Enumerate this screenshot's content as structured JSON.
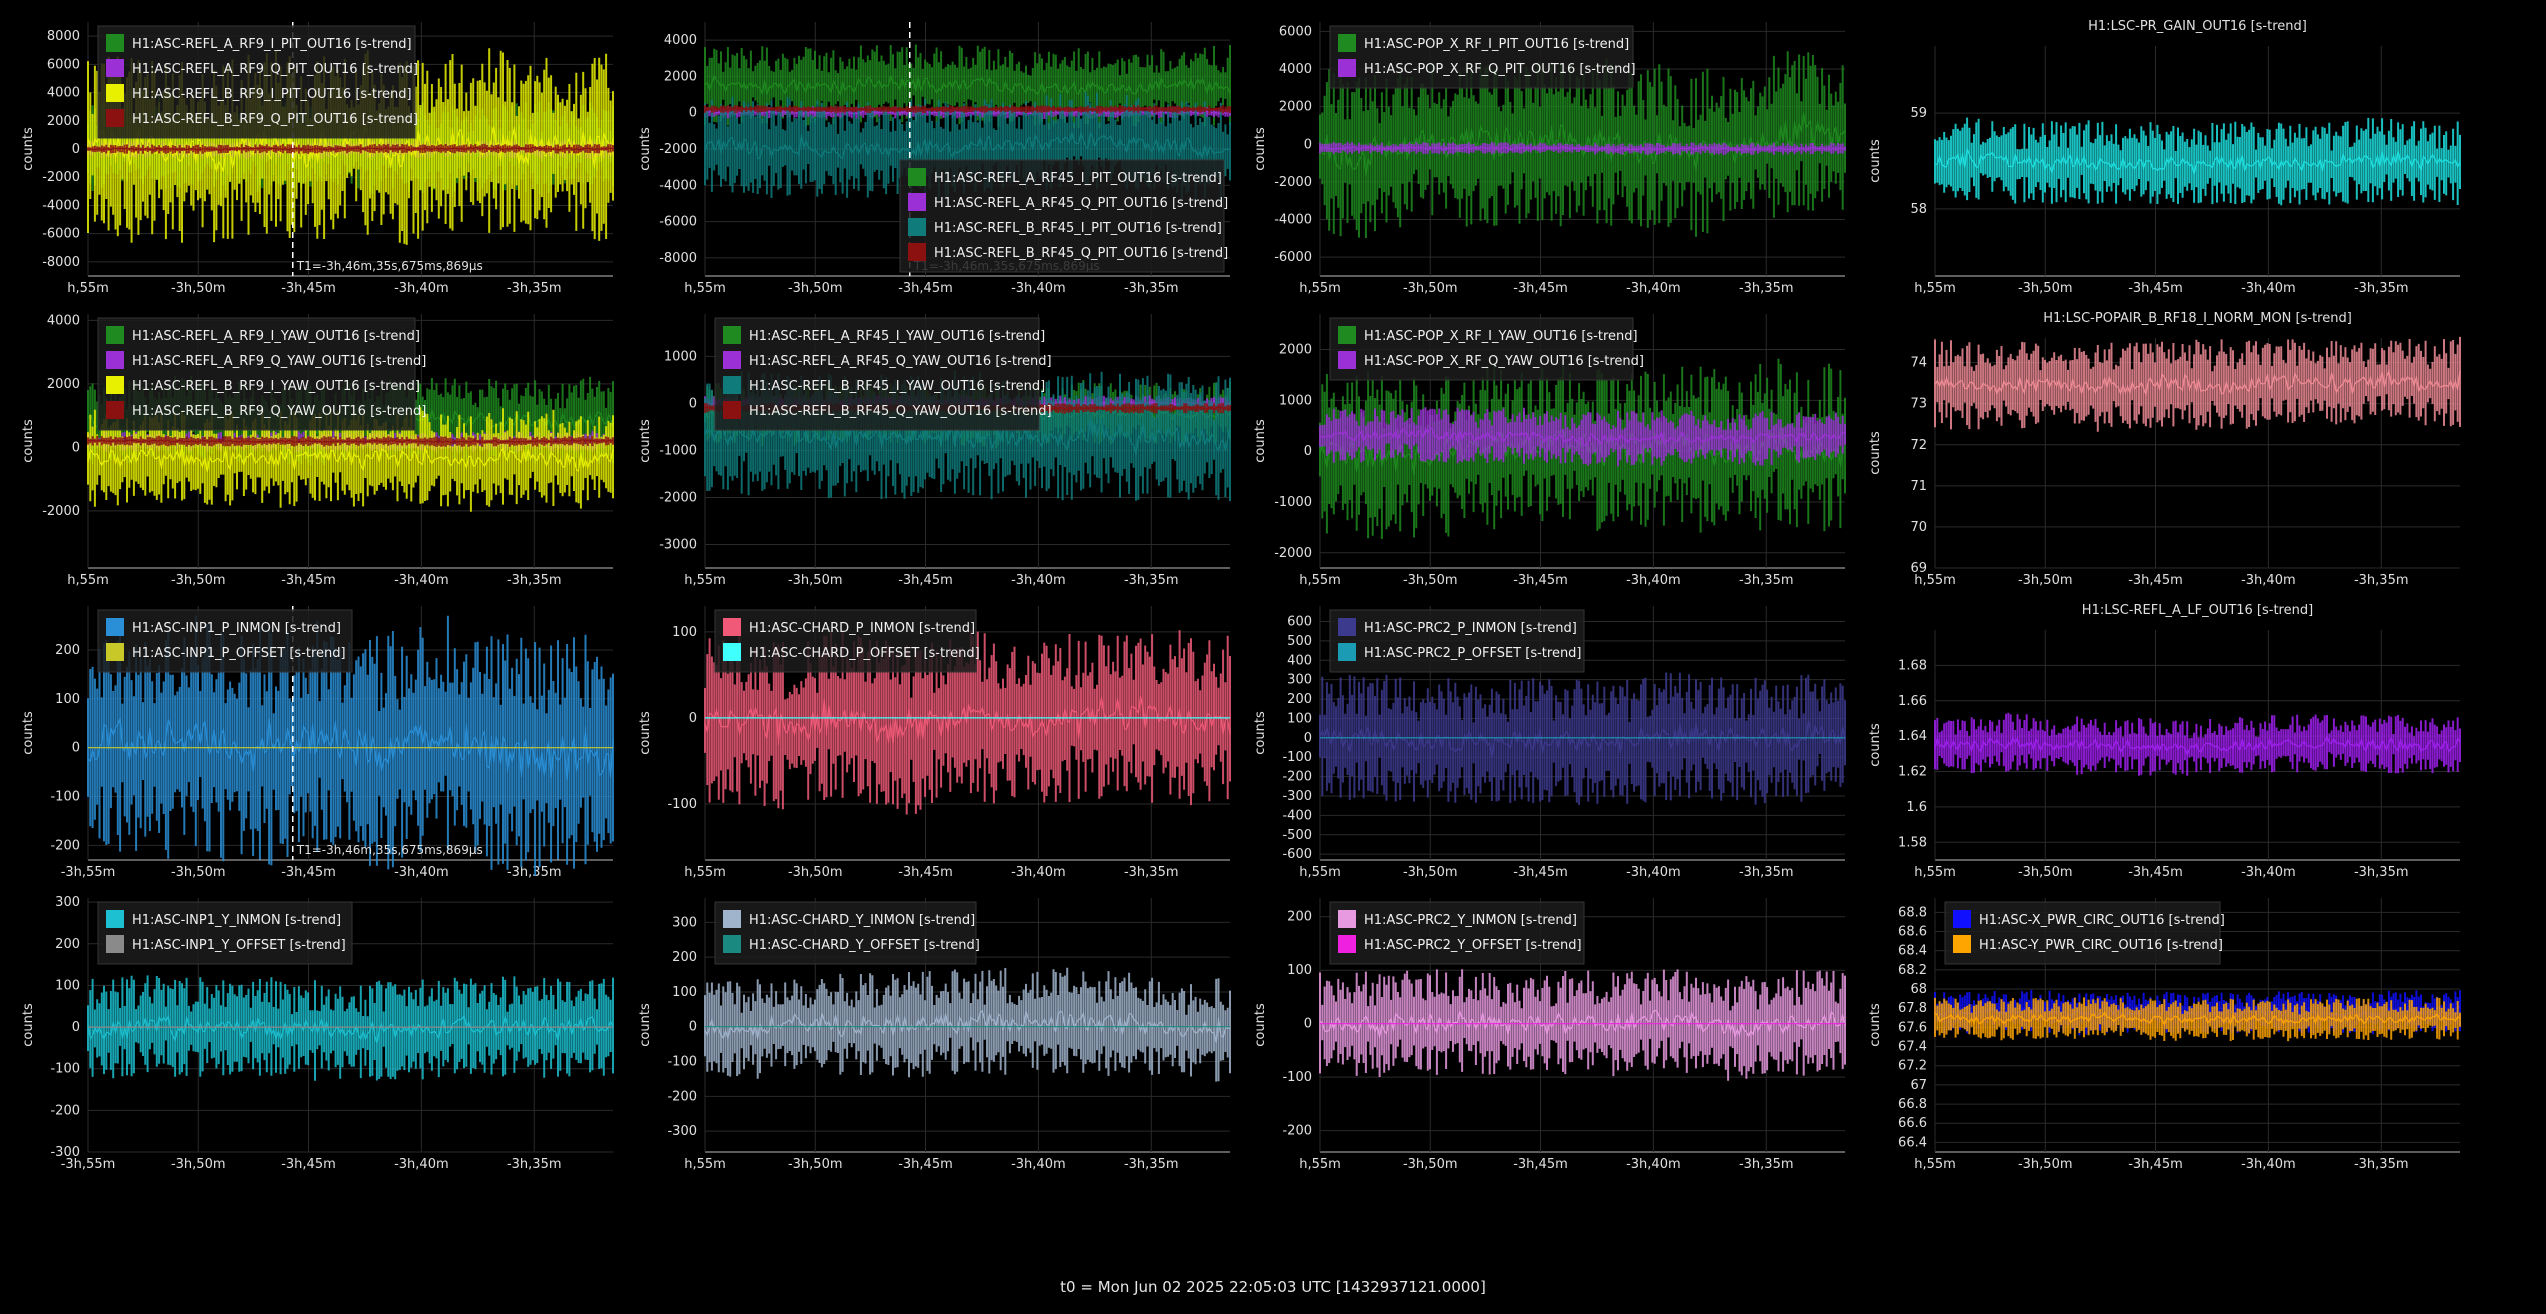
{
  "footer": "t0 = Mon Jun 02 2025 22:05:03 UTC [1432937121.0000]",
  "chart_data": [
    {
      "type": "line",
      "title": "",
      "ylabel": "counts",
      "x_ticks": [
        "h,55m",
        "-3h,50m",
        "-3h,45m",
        "-3h,40m",
        "-3h,35m"
      ],
      "y_ticks": [
        "8000",
        "6000",
        "4000",
        "2000",
        "0",
        "-2000",
        "-4000",
        "-6000",
        "-8000"
      ],
      "ylim": [
        -9000,
        9000
      ],
      "cursor": {
        "x": "-3h,46m,35s,675ms,869µs",
        "label": "T1=-3h,46m,35s,675ms,869µs"
      },
      "legend": "top-left",
      "series": [
        {
          "name": "H1:ASC-REFL_A_RF9_I_PIT_OUT16 [s-trend]",
          "color": "#1f8a1f",
          "center": 0,
          "amplitude": 3000
        },
        {
          "name": "H1:ASC-REFL_A_RF9_Q_PIT_OUT16 [s-trend]",
          "color": "#9b30d6",
          "center": 0,
          "amplitude": 600
        },
        {
          "name": "H1:ASC-REFL_B_RF9_I_PIT_OUT16 [s-trend]",
          "color": "#e8f000",
          "center": 0,
          "amplitude": 6000
        },
        {
          "name": "H1:ASC-REFL_B_RF9_Q_PIT_OUT16 [s-trend]",
          "color": "#8b1010",
          "center": 0,
          "amplitude": 300
        }
      ]
    },
    {
      "type": "line",
      "title": "",
      "ylabel": "counts",
      "x_ticks": [
        "h,55m",
        "-3h,50m",
        "-3h,45m",
        "-3h,40m",
        "-3h,35m"
      ],
      "y_ticks": [
        "4000",
        "2000",
        "0",
        "-2000",
        "-4000",
        "-6000",
        "-8000"
      ],
      "ylim": [
        -9000,
        5000
      ],
      "cursor": {
        "x": "-3h,46m,35s,675ms,869µs",
        "label": "T1=-3h,46m,35s,675ms,869µs"
      },
      "legend": "bottom-right",
      "series": [
        {
          "name": "H1:ASC-REFL_A_RF45_I_PIT_OUT16 [s-trend]",
          "color": "#1f8a1f",
          "center": 1500,
          "amplitude": 2000
        },
        {
          "name": "H1:ASC-REFL_A_RF45_Q_PIT_OUT16 [s-trend]",
          "color": "#9b30d6",
          "center": 0,
          "amplitude": 300
        },
        {
          "name": "H1:ASC-REFL_B_RF45_I_PIT_OUT16 [s-trend]",
          "color": "#0f7b7b",
          "center": -1800,
          "amplitude": 2500
        },
        {
          "name": "H1:ASC-REFL_B_RF45_Q_PIT_OUT16 [s-trend]",
          "color": "#8b1010",
          "center": 200,
          "amplitude": 200
        }
      ]
    },
    {
      "type": "line",
      "title": "",
      "ylabel": "counts",
      "x_ticks": [
        "h,55m",
        "-3h,50m",
        "-3h,45m",
        "-3h,40m",
        "-3h,35m"
      ],
      "y_ticks": [
        "6000",
        "4000",
        "2000",
        "0",
        "-2000",
        "-4000",
        "-6000"
      ],
      "ylim": [
        -7000,
        6500
      ],
      "legend": "top-left",
      "series": [
        {
          "name": "H1:ASC-POP_X_RF_I_PIT_OUT16 [s-trend]",
          "color": "#1f8a1f",
          "center": 0,
          "amplitude": 4000
        },
        {
          "name": "H1:ASC-POP_X_RF_Q_PIT_OUT16 [s-trend]",
          "color": "#9b30d6",
          "center": -200,
          "amplitude": 300
        }
      ]
    },
    {
      "type": "line",
      "title": "H1:LSC-PR_GAIN_OUT16 [s-trend]",
      "ylabel": "counts",
      "x_ticks": [
        "h,55m",
        "-3h,50m",
        "-3h,45m",
        "-3h,40m",
        "-3h,35m"
      ],
      "y_ticks": [
        "59",
        "58"
      ],
      "ylim": [
        57.3,
        59.7
      ],
      "legend": "none",
      "series": [
        {
          "name": "H1:LSC-PR_GAIN_OUT16 [s-trend]",
          "color": "#1fe0e0",
          "center": 58.5,
          "amplitude": 0.4
        }
      ]
    },
    {
      "type": "line",
      "title": "",
      "ylabel": "counts",
      "x_ticks": [
        "h,55m",
        "-3h,50m",
        "-3h,45m",
        "-3h,40m",
        "-3h,35m"
      ],
      "y_ticks": [
        "4000",
        "2000",
        "0",
        "-2000"
      ],
      "ylim": [
        -3800,
        4200
      ],
      "legend": "top-left",
      "series": [
        {
          "name": "H1:ASC-REFL_A_RF9_I_YAW_OUT16 [s-trend]",
          "color": "#1f8a1f",
          "center": 800,
          "amplitude": 1200
        },
        {
          "name": "H1:ASC-REFL_A_RF9_Q_YAW_OUT16 [s-trend]",
          "color": "#9b30d6",
          "center": 200,
          "amplitude": 300
        },
        {
          "name": "H1:ASC-REFL_B_RF9_I_YAW_OUT16 [s-trend]",
          "color": "#e8f000",
          "center": -300,
          "amplitude": 1400
        },
        {
          "name": "H1:ASC-REFL_B_RF9_Q_YAW_OUT16 [s-trend]",
          "color": "#8b1010",
          "center": 200,
          "amplitude": 150
        }
      ]
    },
    {
      "type": "line",
      "title": "",
      "ylabel": "counts",
      "x_ticks": [
        "h,55m",
        "-3h,50m",
        "-3h,45m",
        "-3h,40m",
        "-3h,35m"
      ],
      "y_ticks": [
        "1000",
        "0",
        "-1000",
        "-2000",
        "-3000"
      ],
      "ylim": [
        -3500,
        1900
      ],
      "legend": "top-left",
      "series": [
        {
          "name": "H1:ASC-REFL_A_RF45_I_YAW_OUT16 [s-trend]",
          "color": "#1f8a1f",
          "center": -200,
          "amplitude": 600
        },
        {
          "name": "H1:ASC-REFL_A_RF45_Q_YAW_OUT16 [s-trend]",
          "color": "#9b30d6",
          "center": 0,
          "amplitude": 150
        },
        {
          "name": "H1:ASC-REFL_B_RF45_I_YAW_OUT16 [s-trend]",
          "color": "#0f7b7b",
          "center": -700,
          "amplitude": 1200
        },
        {
          "name": "H1:ASC-REFL_B_RF45_Q_YAW_OUT16 [s-trend]",
          "color": "#8b1010",
          "center": -100,
          "amplitude": 100
        }
      ]
    },
    {
      "type": "line",
      "title": "",
      "ylabel": "counts",
      "x_ticks": [
        "h,55m",
        "-3h,50m",
        "-3h,45m",
        "-3h,40m",
        "-3h,35m"
      ],
      "y_ticks": [
        "2000",
        "1000",
        "0",
        "-1000",
        "-2000"
      ],
      "ylim": [
        -2300,
        2700
      ],
      "legend": "top-left",
      "series": [
        {
          "name": "H1:ASC-POP_X_RF_I_YAW_OUT16 [s-trend]",
          "color": "#1f8a1f",
          "center": 0,
          "amplitude": 1500
        },
        {
          "name": "H1:ASC-POP_X_RF_Q_YAW_OUT16 [s-trend]",
          "color": "#9b30d6",
          "center": 300,
          "amplitude": 500
        }
      ]
    },
    {
      "type": "line",
      "title": "H1:LSC-POPAIR_B_RF18_I_NORM_MON [s-trend]",
      "ylabel": "counts",
      "x_ticks": [
        "h,55m",
        "-3h,50m",
        "-3h,45m",
        "-3h,40m",
        "-3h,35m"
      ],
      "y_ticks": [
        "74",
        "73",
        "72",
        "71",
        "70",
        "69"
      ],
      "ylim": [
        69,
        74.6
      ],
      "legend": "none",
      "series": [
        {
          "name": "H1:LSC-POPAIR_B_RF18_I_NORM_MON [s-trend]",
          "color": "#f08c96",
          "center": 73.5,
          "amplitude": 1.0
        }
      ]
    },
    {
      "type": "line",
      "title": "",
      "ylabel": "counts",
      "x_ticks": [
        "-3h,55m",
        "-3h,50m",
        "-3h,45m",
        "-3h,40m",
        "-3h,35m"
      ],
      "y_ticks": [
        "200",
        "100",
        "0",
        "-100",
        "-200"
      ],
      "ylim": [
        -230,
        290
      ],
      "cursor": {
        "x": "-3h,46m,35s,675ms,869µs",
        "label": "T1=-3h,46m,35s,675ms,869µs"
      },
      "legend": "top-left",
      "series": [
        {
          "name": "H1:ASC-INP1_P_INMON [s-trend]",
          "color": "#2a8fd6",
          "center": 0,
          "amplitude": 220
        },
        {
          "name": "H1:ASC-INP1_P_OFFSET [s-trend]",
          "color": "#c8c828",
          "center": 0,
          "amplitude": 0
        }
      ]
    },
    {
      "type": "line",
      "title": "",
      "ylabel": "counts",
      "x_ticks": [
        "h,55m",
        "-3h,50m",
        "-3h,45m",
        "-3h,40m",
        "-3h,35m"
      ],
      "y_ticks": [
        "100",
        "0",
        "-100"
      ],
      "ylim": [
        -165,
        130
      ],
      "legend": "top-left",
      "series": [
        {
          "name": "H1:ASC-CHARD_P_INMON [s-trend]",
          "color": "#f05a78",
          "center": 0,
          "amplitude": 90
        },
        {
          "name": "H1:ASC-CHARD_P_OFFSET [s-trend]",
          "color": "#40ffff",
          "center": 0,
          "amplitude": 0
        }
      ]
    },
    {
      "type": "line",
      "title": "",
      "ylabel": "counts",
      "x_ticks": [
        "h,55m",
        "-3h,50m",
        "-3h,45m",
        "-3h,40m",
        "-3h,35m"
      ],
      "y_ticks": [
        "600",
        "500",
        "400",
        "300",
        "200",
        "100",
        "0",
        "-100",
        "-200",
        "-300",
        "-400",
        "-500",
        "-600"
      ],
      "ylim": [
        -630,
        680
      ],
      "legend": "top-left",
      "series": [
        {
          "name": "H1:ASC-PRC2_P_INMON [s-trend]",
          "color": "#3c3a8c",
          "center": 0,
          "amplitude": 300
        },
        {
          "name": "H1:ASC-PRC2_P_OFFSET [s-trend]",
          "color": "#1b9bb4",
          "center": 0,
          "amplitude": 0
        }
      ]
    },
    {
      "type": "line",
      "title": "H1:LSC-REFL_A_LF_OUT16 [s-trend]",
      "ylabel": "counts",
      "x_ticks": [
        "h,55m",
        "-3h,50m",
        "-3h,45m",
        "-3h,40m",
        "-3h,35m"
      ],
      "y_ticks": [
        "1.68",
        "1.66",
        "1.64",
        "1.62",
        "1.6",
        "1.58"
      ],
      "ylim": [
        1.57,
        1.7
      ],
      "legend": "none",
      "series": [
        {
          "name": "H1:LSC-REFL_A_LF_OUT16 [s-trend]",
          "color": "#a020f0",
          "center": 1.635,
          "amplitude": 0.015
        }
      ]
    },
    {
      "type": "line",
      "title": "",
      "ylabel": "counts",
      "x_ticks": [
        "-3h,55m",
        "-3h,50m",
        "-3h,45m",
        "-3h,40m",
        "-3h,35m"
      ],
      "y_ticks": [
        "300",
        "200",
        "100",
        "0",
        "-100",
        "-200",
        "-300"
      ],
      "ylim": [
        -300,
        310
      ],
      "legend": "top-left",
      "series": [
        {
          "name": "H1:ASC-INP1_Y_INMON [s-trend]",
          "color": "#1cc0d0",
          "center": 0,
          "amplitude": 110
        },
        {
          "name": "H1:ASC-INP1_Y_OFFSET [s-trend]",
          "color": "#8a8a8a",
          "center": 0,
          "amplitude": 0
        }
      ]
    },
    {
      "type": "line",
      "title": "",
      "ylabel": "counts",
      "x_ticks": [
        "h,55m",
        "-3h,50m",
        "-3h,45m",
        "-3h,40m",
        "-3h,35m"
      ],
      "y_ticks": [
        "300",
        "200",
        "100",
        "0",
        "-100",
        "-200",
        "-300"
      ],
      "ylim": [
        -360,
        370
      ],
      "legend": "top-left",
      "series": [
        {
          "name": "H1:ASC-CHARD_Y_INMON [s-trend]",
          "color": "#a0b4cc",
          "center": 0,
          "amplitude": 140
        },
        {
          "name": "H1:ASC-CHARD_Y_OFFSET [s-trend]",
          "color": "#1a8a80",
          "center": 0,
          "amplitude": 0
        }
      ]
    },
    {
      "type": "line",
      "title": "",
      "ylabel": "counts",
      "x_ticks": [
        "h,55m",
        "-3h,50m",
        "-3h,45m",
        "-3h,40m",
        "-3h,35m"
      ],
      "y_ticks": [
        "200",
        "100",
        "0",
        "-100",
        "-200"
      ],
      "ylim": [
        -240,
        235
      ],
      "legend": "top-left",
      "series": [
        {
          "name": "H1:ASC-PRC2_Y_INMON [s-trend]",
          "color": "#e89ae0",
          "center": 0,
          "amplitude": 90
        },
        {
          "name": "H1:ASC-PRC2_Y_OFFSET [s-trend]",
          "color": "#f020e0",
          "center": 0,
          "amplitude": 0
        }
      ]
    },
    {
      "type": "line",
      "title": "",
      "ylabel": "counts",
      "x_ticks": [
        "h,55m",
        "-3h,50m",
        "-3h,45m",
        "-3h,40m",
        "-3h,35m"
      ],
      "y_ticks": [
        "68.8",
        "68.6",
        "68.4",
        "68.2",
        "68",
        "67.8",
        "67.6",
        "67.4",
        "67.2",
        "67",
        "66.8",
        "66.6",
        "66.4"
      ],
      "ylim": [
        66.3,
        68.95
      ],
      "legend": "top-left",
      "series": [
        {
          "name": "H1:ASC-X_PWR_CIRC_OUT16 [s-trend]",
          "color": "#1010ff",
          "center": 67.75,
          "amplitude": 0.2
        },
        {
          "name": "H1:ASC-Y_PWR_CIRC_OUT16 [s-trend]",
          "color": "#ffa500",
          "center": 67.7,
          "amplitude": 0.2
        }
      ]
    }
  ]
}
